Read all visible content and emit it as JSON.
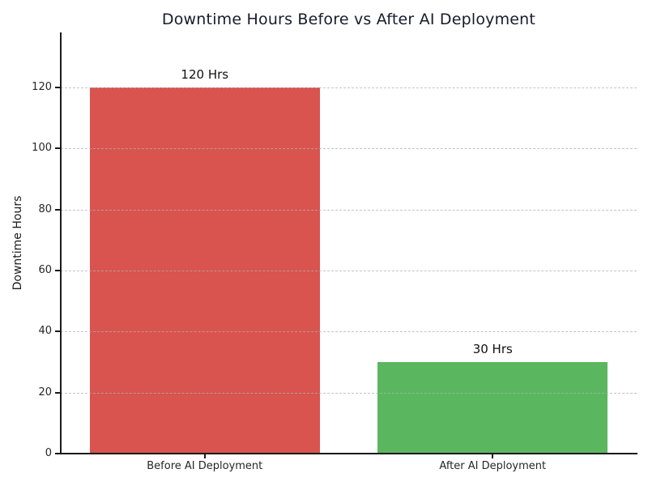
{
  "chart_data": {
    "type": "bar",
    "title": "Downtime Hours Before vs After AI Deployment",
    "categories": [
      "Before AI Deployment",
      "After AI Deployment"
    ],
    "values": [
      120,
      30
    ],
    "bar_labels": [
      "120 Hrs",
      "30 Hrs"
    ],
    "bar_colors": [
      "#d9534f",
      "#5bb75f"
    ],
    "xlabel": "",
    "ylabel": "Downtime Hours",
    "ylim": [
      0,
      138
    ],
    "yticks": [
      0,
      20,
      40,
      60,
      80,
      100,
      120
    ],
    "grid": "horizontal-dashed-above-bars",
    "legend": "none",
    "colors": {
      "title": "#1a1a2e",
      "axis": "#1a1a1a",
      "grid": "#b0b0b0",
      "tick_label": "#262626"
    }
  }
}
